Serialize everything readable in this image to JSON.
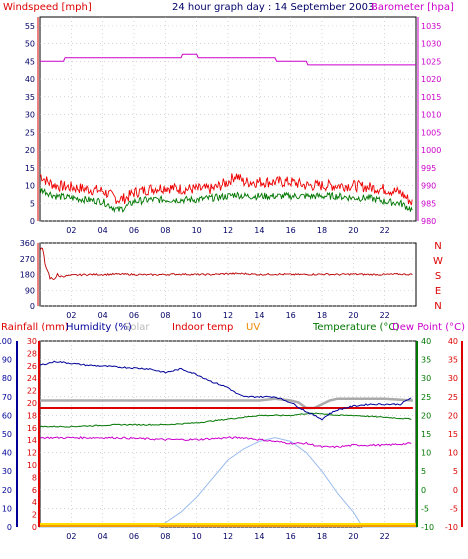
{
  "header": {
    "left_label": "Windspeed [mph]",
    "title": "24 hour graph day : 14 September 2003",
    "right_label": "Barometer [hpa]"
  },
  "colors": {
    "wind": "#ee0000",
    "wind_avg": "#007700",
    "baro": "#cc00cc",
    "winddir": "#bb0000",
    "humidity": "#000099",
    "indoor": "#aaaaaa",
    "temperature": "#007700",
    "dewpoint": "#cc00cc",
    "uv": "#99bbee",
    "rain": "#ee8800",
    "red_line": "#dd0000",
    "axis_left": "#000099",
    "grid": "#bbbbbb"
  },
  "chart_data": [
    {
      "type": "line",
      "name": "wind-baro",
      "x_ticks": [
        "02",
        "04",
        "06",
        "08",
        "10",
        "12",
        "14",
        "16",
        "18",
        "20",
        "22"
      ],
      "y_left_ticks": [
        0,
        5,
        10,
        15,
        20,
        25,
        30,
        35,
        40,
        45,
        50,
        55
      ],
      "y_right_ticks": [
        980,
        985,
        990,
        995,
        1000,
        1005,
        1010,
        1015,
        1020,
        1025,
        1030,
        1035
      ],
      "ylim_left": [
        0,
        57.5
      ],
      "ylim_right": [
        980,
        1037.5
      ],
      "xlim": [
        0,
        24
      ],
      "grid": true,
      "series": [
        {
          "key": "gust",
          "x": [
            0,
            0.5,
            1,
            2,
            3,
            4,
            5,
            5.5,
            6,
            7,
            8,
            9,
            10,
            11,
            12,
            12.5,
            13,
            14,
            15,
            16,
            17,
            18,
            19,
            20,
            21,
            22,
            23,
            23.8
          ],
          "y": [
            13,
            11,
            10,
            9.5,
            9,
            8.5,
            6,
            6.5,
            8,
            9,
            9.5,
            9,
            9,
            9,
            11,
            13,
            11,
            11,
            11,
            11,
            10,
            10,
            10,
            10,
            9.5,
            9,
            8,
            5
          ]
        },
        {
          "key": "avg",
          "x": [
            0,
            0.5,
            1,
            2,
            3,
            4,
            5,
            5.5,
            6,
            7,
            8,
            9,
            10,
            11,
            12,
            12.5,
            13,
            14,
            15,
            16,
            17,
            18,
            19,
            20,
            21,
            22,
            23,
            23.8
          ],
          "y": [
            9,
            8,
            7,
            6.5,
            6,
            5.5,
            3,
            4,
            5.5,
            6,
            6,
            6,
            6,
            6.5,
            7,
            7.5,
            7,
            7,
            7,
            7,
            7,
            7,
            7,
            6.5,
            6.5,
            5.5,
            5,
            3
          ]
        },
        {
          "key": "baro",
          "x": [
            0,
            1.5,
            1.6,
            9,
            9.1,
            10,
            10.1,
            15,
            15.1,
            17,
            17.1,
            24
          ],
          "y": [
            1025,
            1025,
            1026,
            1026,
            1027,
            1027,
            1026,
            1026,
            1025,
            1025,
            1024,
            1024
          ]
        }
      ]
    },
    {
      "type": "line",
      "name": "wind-direction",
      "x_ticks": [
        "02",
        "04",
        "06",
        "08",
        "10",
        "12",
        "14",
        "16",
        "18",
        "20",
        "22"
      ],
      "y_left_ticks": [
        0,
        90,
        180,
        270,
        360
      ],
      "y_right_ticks": [
        "N",
        "W",
        "S",
        "E",
        "N"
      ],
      "ylim": [
        0,
        360
      ],
      "xlim": [
        0,
        24
      ],
      "grid": true,
      "series": [
        {
          "key": "dir",
          "x": [
            0,
            0.2,
            0.4,
            0.7,
            1,
            1.5,
            2,
            3,
            4,
            5,
            6,
            7,
            8,
            9,
            10,
            11,
            12,
            13,
            14,
            15,
            16,
            17,
            18,
            19,
            20,
            21,
            22,
            23,
            23.8
          ],
          "y": [
            300,
            340,
            200,
            150,
            170,
            170,
            175,
            180,
            180,
            182,
            180,
            178,
            180,
            182,
            180,
            180,
            185,
            185,
            180,
            182,
            180,
            180,
            182,
            180,
            182,
            180,
            180,
            182,
            180
          ]
        }
      ]
    },
    {
      "type": "line",
      "name": "climate",
      "x_ticks": [
        "02",
        "04",
        "06",
        "08",
        "10",
        "12",
        "14",
        "16",
        "18",
        "20",
        "22"
      ],
      "legend": [
        "Rainfall (mm)",
        "Humidity (%)",
        "Solar",
        "Indoor temp",
        "UV",
        "Temperature (°C)",
        "Dew Point (°C)"
      ],
      "y_humidity_ticks": [
        0,
        10,
        20,
        30,
        40,
        50,
        60,
        70,
        80,
        90,
        100
      ],
      "y_rain_ticks": [
        0,
        2,
        4,
        6,
        8,
        10,
        12,
        14,
        16,
        18,
        20,
        22,
        24,
        26,
        28,
        30
      ],
      "y_temp_ticks": [
        -10,
        -5,
        0,
        5,
        10,
        15,
        20,
        25,
        30,
        35,
        40
      ],
      "y_dew_ticks": [
        -10,
        -5,
        0,
        5,
        10,
        15,
        20,
        25,
        30,
        35,
        40
      ],
      "ylim_humidity": [
        0,
        100
      ],
      "ylim_temp": [
        -10,
        40
      ],
      "xlim": [
        0,
        24
      ],
      "grid": true,
      "series": [
        {
          "key": "humidity",
          "x": [
            0,
            1,
            2,
            3,
            5,
            7,
            8,
            9,
            10,
            11,
            12,
            12.5,
            13,
            14,
            15,
            16,
            17,
            18,
            18.5,
            19,
            20,
            21,
            22,
            23,
            23.8
          ],
          "y": [
            87,
            89,
            88,
            87,
            86,
            85,
            83,
            85,
            82,
            78,
            75,
            72,
            70,
            70,
            70,
            67,
            62,
            58,
            61,
            63,
            65,
            66,
            66,
            66,
            70
          ]
        },
        {
          "key": "indoor",
          "x": [
            0,
            1,
            5,
            8,
            12,
            14,
            15,
            16,
            16.5,
            17,
            17.5,
            18,
            18.5,
            19,
            20,
            22,
            23.8
          ],
          "y": [
            24,
            24,
            24,
            24,
            24,
            24,
            24.5,
            24,
            23.5,
            22,
            22,
            23,
            24,
            24.5,
            24.5,
            24.5,
            24
          ]
        },
        {
          "key": "temperature",
          "x": [
            0,
            2,
            5,
            8,
            10,
            12,
            13,
            14,
            15,
            16,
            17,
            18,
            19,
            20,
            22,
            23.8
          ],
          "y": [
            17,
            17,
            17.5,
            17.5,
            18,
            19,
            19.5,
            20,
            20,
            20,
            20.5,
            20.5,
            20,
            20,
            19.5,
            19
          ]
        },
        {
          "key": "dewpoint",
          "x": [
            0,
            2,
            5,
            8,
            10,
            12,
            13,
            14,
            15,
            16,
            17,
            18,
            19,
            20,
            22,
            23.8
          ],
          "y": [
            14,
            14,
            14,
            13.5,
            13.5,
            14,
            14,
            13.5,
            13,
            12.5,
            12.5,
            11.5,
            11.5,
            12,
            12,
            12.5
          ]
        },
        {
          "key": "redline",
          "x": [
            0,
            23.8
          ],
          "y": [
            22,
            22
          ]
        },
        {
          "key": "uv",
          "x": [
            0,
            7.6,
            9,
            10,
            11,
            12,
            13,
            14,
            15,
            16,
            17,
            18,
            19,
            20,
            20.6,
            24
          ],
          "y": [
            -10,
            -10,
            -6,
            -2,
            3,
            8,
            11,
            13,
            14,
            13,
            10,
            5,
            -1,
            -6,
            -10,
            -10
          ]
        },
        {
          "key": "rain",
          "x": [
            0,
            24
          ],
          "y": [
            0,
            0
          ]
        }
      ]
    }
  ]
}
